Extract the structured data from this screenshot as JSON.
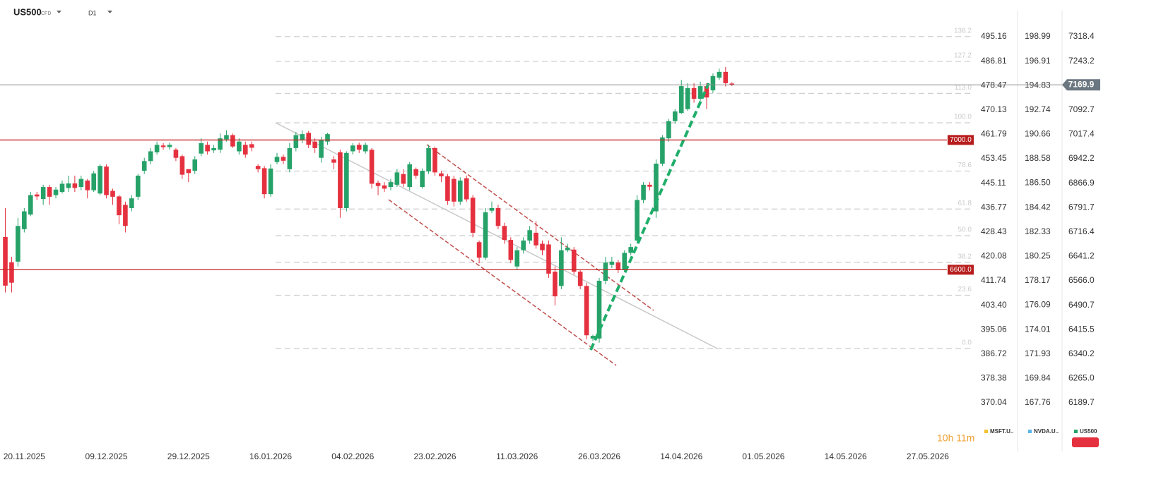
{
  "chart_data": {
    "type": "candlestick",
    "title": "US500",
    "subtitle": "CFD",
    "timeframe": "D1",
    "countdown": "10h 11m",
    "xlim": [
      -0.84,
      153.5
    ],
    "xticks": [
      {
        "value": 3,
        "label": "20.11.2025"
      },
      {
        "value": 16,
        "label": "09.12.2025"
      },
      {
        "value": 29,
        "label": "29.12.2025"
      },
      {
        "value": 42,
        "label": "16.01.2026"
      },
      {
        "value": 55,
        "label": "04.02.2026"
      },
      {
        "value": 68,
        "label": "23.02.2026"
      },
      {
        "value": 81,
        "label": "11.03.2026"
      },
      {
        "value": 94,
        "label": "26.03.2026"
      },
      {
        "value": 107,
        "label": "14.04.2026"
      },
      {
        "value": 120,
        "label": "01.05.2026"
      },
      {
        "value": 133,
        "label": "14.05.2026"
      },
      {
        "value": 146,
        "label": "27.05.2026"
      }
    ],
    "ylim": [
      6061.4,
      7431.5
    ],
    "yticks": [
      7318.4,
      7243.2,
      7092.7,
      7017.4,
      6942.2,
      6866.9,
      6791.7,
      6716.4,
      6641.2,
      {
        "value": 6566,
        "label": "6566.0"
      },
      6490.7,
      6415.5,
      6340.2,
      {
        "value": 6265,
        "label": "6265.0"
      },
      6189.7
    ],
    "y2lim": [
      355.82,
      507.7
    ],
    "y2ticks": [
      495.16,
      486.81,
      478.47,
      470.13,
      461.79,
      453.45,
      445.11,
      436.77,
      428.43,
      420.08,
      411.74,
      {
        "value": 403.4,
        "label": "403.40"
      },
      395.06,
      386.72,
      378.38,
      370.04
    ],
    "y3lim": [
      164.21,
      202.12
    ],
    "y3ticks": [
      198.99,
      196.91,
      194.83,
      192.74,
      190.66,
      188.58,
      {
        "value": 186.5,
        "label": "186.50"
      },
      184.42,
      182.33,
      180.25,
      178.17,
      176.09,
      174.01,
      171.93,
      169.84,
      167.76
    ],
    "levels": [
      {
        "value": 7000,
        "label": "7000.0"
      },
      {
        "value": 6600,
        "label": "6600.0"
      }
    ],
    "last_price": 7169.9,
    "fib": {
      "low": 6357,
      "high": 7053,
      "levels": [
        {
          "value": 138.2,
          "label": "138.2"
        },
        {
          "value": 127.2,
          "label": "127.2"
        },
        {
          "value": 113,
          "label": "113.0"
        },
        {
          "value": 100,
          "label": "100.0"
        },
        {
          "value": 78.6,
          "label": "78.6"
        },
        {
          "value": 61.8,
          "label": "61.8"
        },
        {
          "value": 50,
          "label": "50.0"
        },
        {
          "value": 38.2,
          "label": "38.2"
        },
        {
          "value": 23.6,
          "label": "23.6"
        },
        {
          "value": 0,
          "label": "0.0"
        }
      ]
    },
    "series": [
      {
        "name": "MSFT.U..",
        "color": "#f2c230",
        "axis": "y2"
      },
      {
        "name": "NVDA.U..",
        "color": "#5ab4e6",
        "axis": "y3"
      },
      {
        "name": "US500",
        "color": "#26a269",
        "down_color": "#e5313f",
        "open": [
          6701,
          6623,
          6625,
          6725,
          6770,
          6832,
          6818,
          6855,
          6830,
          6840,
          6852,
          6866,
          6855,
          6875,
          6845,
          6835,
          6918,
          6843,
          6826,
          6800,
          6790,
          6825,
          6905,
          6935,
          6962,
          6983,
          6978,
          6970,
          6950,
          6910,
          6905,
          6958,
          6985,
          6968,
          6970,
          7002,
          7015,
          6965,
          6985,
          6987,
          6920,
          6913,
          6833,
          6932,
          6948,
          6910,
          6975,
          7000,
          7022,
          6995,
          6945,
          6995,
          6940,
          6962,
          6790,
          6965,
          6985,
          6965,
          6970,
          6868,
          6860,
          6855,
          6862,
          6895,
          6855,
          6910,
          6855,
          6903,
          6975,
          6897,
          6888,
          6880,
          6810,
          6882,
          6822,
          6685,
          6637,
          6782,
          6790,
          6735,
          6692,
          6610,
          6660,
          6690,
          6714,
          6680,
          6678,
          6594,
          6550,
          6660,
          6662,
          6594,
          6550,
          6388,
          6388,
          6566,
          6615,
          6622,
          6600,
          6652,
          6690,
          6815,
          6862,
          6780,
          6927,
          7005,
          7058,
          7083,
          7095,
          7160,
          7127,
          7166,
          7153,
          7192,
          7210,
          7174
        ],
        "high": [
          6790,
          6640,
          6760,
          6790,
          6840,
          6840,
          6862,
          6862,
          6855,
          6875,
          6890,
          6890,
          6890,
          6880,
          6905,
          6925,
          6925,
          6850,
          6830,
          6810,
          6830,
          6895,
          6945,
          6975,
          6995,
          6990,
          6992,
          6975,
          6955,
          6910,
          6950,
          7005,
          6995,
          6985,
          7020,
          7030,
          7020,
          7005,
          6995,
          6995,
          6925,
          6920,
          6925,
          6960,
          6955,
          6990,
          7025,
          7030,
          7028,
          7005,
          7010,
          7022,
          6950,
          6970,
          6965,
          6990,
          6992,
          6992,
          6975,
          6875,
          6870,
          6880,
          6910,
          6910,
          6932,
          6915,
          6912,
          6985,
          6980,
          6905,
          6895,
          6890,
          6885,
          6890,
          6830,
          6690,
          6790,
          6810,
          6800,
          6745,
          6700,
          6670,
          6700,
          6735,
          6750,
          6690,
          6690,
          6610,
          6700,
          6680,
          6670,
          6600,
          6560,
          6400,
          6575,
          6640,
          6640,
          6630,
          6660,
          6680,
          6830,
          6870,
          6870,
          6940,
          7015,
          7065,
          7095,
          7185,
          7175,
          7175,
          7180,
          7175,
          7205,
          7220,
          7225,
          7178
        ],
        "low": [
          6530,
          6530,
          6610,
          6715,
          6765,
          6815,
          6800,
          6800,
          6820,
          6835,
          6840,
          6840,
          6845,
          6820,
          6840,
          6830,
          6820,
          6800,
          6740,
          6715,
          6780,
          6815,
          6895,
          6925,
          6955,
          6970,
          6970,
          6935,
          6880,
          6870,
          6895,
          6950,
          6955,
          6960,
          6960,
          6995,
          6975,
          6955,
          6945,
          6965,
          6900,
          6820,
          6825,
          6925,
          6925,
          6900,
          6965,
          6990,
          6975,
          6960,
          6930,
          6985,
          6910,
          6760,
          6780,
          6955,
          6960,
          6958,
          6850,
          6830,
          6840,
          6845,
          6855,
          6855,
          6845,
          6880,
          6850,
          6895,
          6890,
          6870,
          6800,
          6795,
          6800,
          6810,
          6700,
          6620,
          6630,
          6775,
          6725,
          6680,
          6620,
          6600,
          6650,
          6680,
          6665,
          6645,
          6575,
          6490,
          6540,
          6655,
          6585,
          6540,
          6385,
          6380,
          6375,
          6555,
          6605,
          6590,
          6595,
          6645,
          6680,
          6805,
          6845,
          6760,
          6920,
          6995,
          7050,
          7080,
          7090,
          7115,
          7120,
          7095,
          7145,
          7185,
          7165,
          7166
        ],
        "close": [
          6551,
          6560,
          6735,
          6780,
          6830,
          6826,
          6855,
          6825,
          6847,
          6865,
          6866,
          6852,
          6880,
          6845,
          6897,
          6920,
          6830,
          6825,
          6768,
          6735,
          6820,
          6890,
          6935,
          6965,
          6985,
          6978,
          6985,
          6945,
          6893,
          6898,
          6940,
          6990,
          6965,
          6975,
          7005,
          7015,
          6980,
          6995,
          6955,
          6976,
          6910,
          6833,
          6912,
          6948,
          6936,
          6975,
          7015,
          7018,
          6985,
          6975,
          7000,
          7018,
          6930,
          6790,
          6960,
          6983,
          6970,
          6985,
          6865,
          6858,
          6850,
          6870,
          6900,
          6865,
          6925,
          6890,
          6905,
          6975,
          6900,
          6888,
          6812,
          6810,
          6875,
          6817,
          6714,
          6637,
          6777,
          6790,
          6735,
          6692,
          6630,
          6660,
          6690,
          6722,
          6675,
          6660,
          6588,
          6518,
          6660,
          6668,
          6594,
          6550,
          6398,
          6396,
          6566,
          6622,
          6625,
          6600,
          6652,
          6670,
          6815,
          6862,
          6856,
          6927,
          7008,
          7058,
          7088,
          7166,
          7160,
          7127,
          7166,
          7131,
          7197,
          7210,
          7175,
          7170
        ]
      }
    ]
  }
}
